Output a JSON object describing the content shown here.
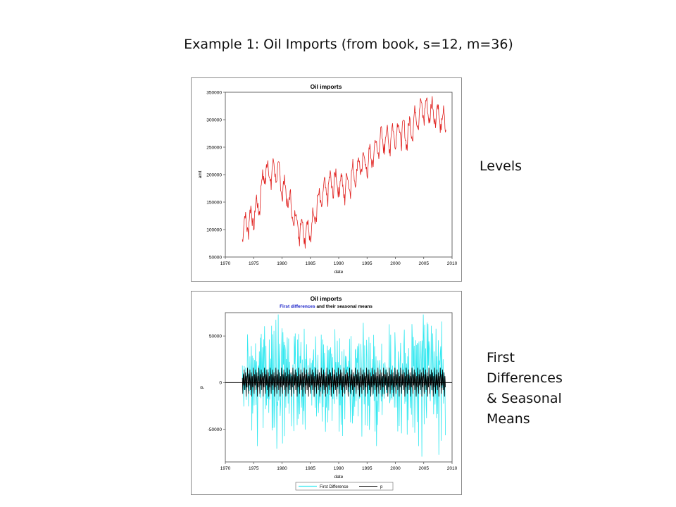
{
  "slide": {
    "title": "Example 1:  Oil Imports (from book, s=12, m=36)",
    "levels_label": "Levels",
    "diff_label_lines": [
      "First",
      "Differences",
      "& Seasonal",
      "Means"
    ]
  },
  "chart_data": [
    {
      "type": "line",
      "title": "Oil imports",
      "xlabel": "date",
      "ylabel": "amt",
      "xlim": [
        1970,
        2010
      ],
      "ylim": [
        50000,
        350000
      ],
      "xticks": [
        "1970",
        "1975",
        "1980",
        "1985",
        "1990",
        "1995",
        "2000",
        "2005",
        "2010"
      ],
      "yticks": [
        "50000",
        "100000",
        "150000",
        "200000",
        "250000",
        "300000",
        "350000"
      ],
      "series_color": "#e0201e",
      "x": [
        1973,
        1974,
        1975,
        1976,
        1977,
        1978,
        1979,
        1980,
        1981,
        1982,
        1983,
        1984,
        1985,
        1986,
        1987,
        1988,
        1989,
        1990,
        1991,
        1992,
        1993,
        1994,
        1995,
        1996,
        1997,
        1998,
        1999,
        2000,
        2001,
        2002,
        2003,
        2004,
        2005,
        2006,
        2007,
        2008,
        2009
      ],
      "values": [
        100000,
        115000,
        125000,
        150000,
        210000,
        200000,
        210000,
        180000,
        160000,
        125000,
        105000,
        100000,
        95000,
        140000,
        160000,
        175000,
        185000,
        185000,
        175000,
        190000,
        205000,
        220000,
        220000,
        235000,
        255000,
        265000,
        265000,
        275000,
        280000,
        270000,
        290000,
        310000,
        320000,
        315000,
        315000,
        300000,
        290000
      ]
    },
    {
      "type": "line",
      "title": "Oil imports",
      "subtitle_highlight": "First differences",
      "subtitle_rest": " and their seasonal means",
      "xlabel": "date",
      "ylabel": "p",
      "xlim": [
        1970,
        2010
      ],
      "ylim": [
        -85000,
        75000
      ],
      "xticks": [
        "1970",
        "1975",
        "1980",
        "1985",
        "1990",
        "1995",
        "2000",
        "2005",
        "2010"
      ],
      "yticks": [
        "-50000",
        "0",
        "50000"
      ],
      "x_start": 1973,
      "x_end": 2008.9,
      "seasonal_means": [
        5000,
        -12000,
        9000,
        -3000,
        14000,
        -8000,
        3000,
        11000,
        -15000,
        7000,
        -5000,
        16000
      ],
      "first_difference_amplitude": [
        30000,
        50000,
        60000,
        40000,
        35000,
        38000,
        40000,
        40000,
        42000,
        45000,
        45000,
        50000,
        60000,
        65000
      ],
      "series": [
        {
          "name": "First Difference",
          "color": "#33e8f0"
        },
        {
          "name": "p",
          "color": "#000000"
        }
      ],
      "legend_position": "bottom"
    }
  ]
}
